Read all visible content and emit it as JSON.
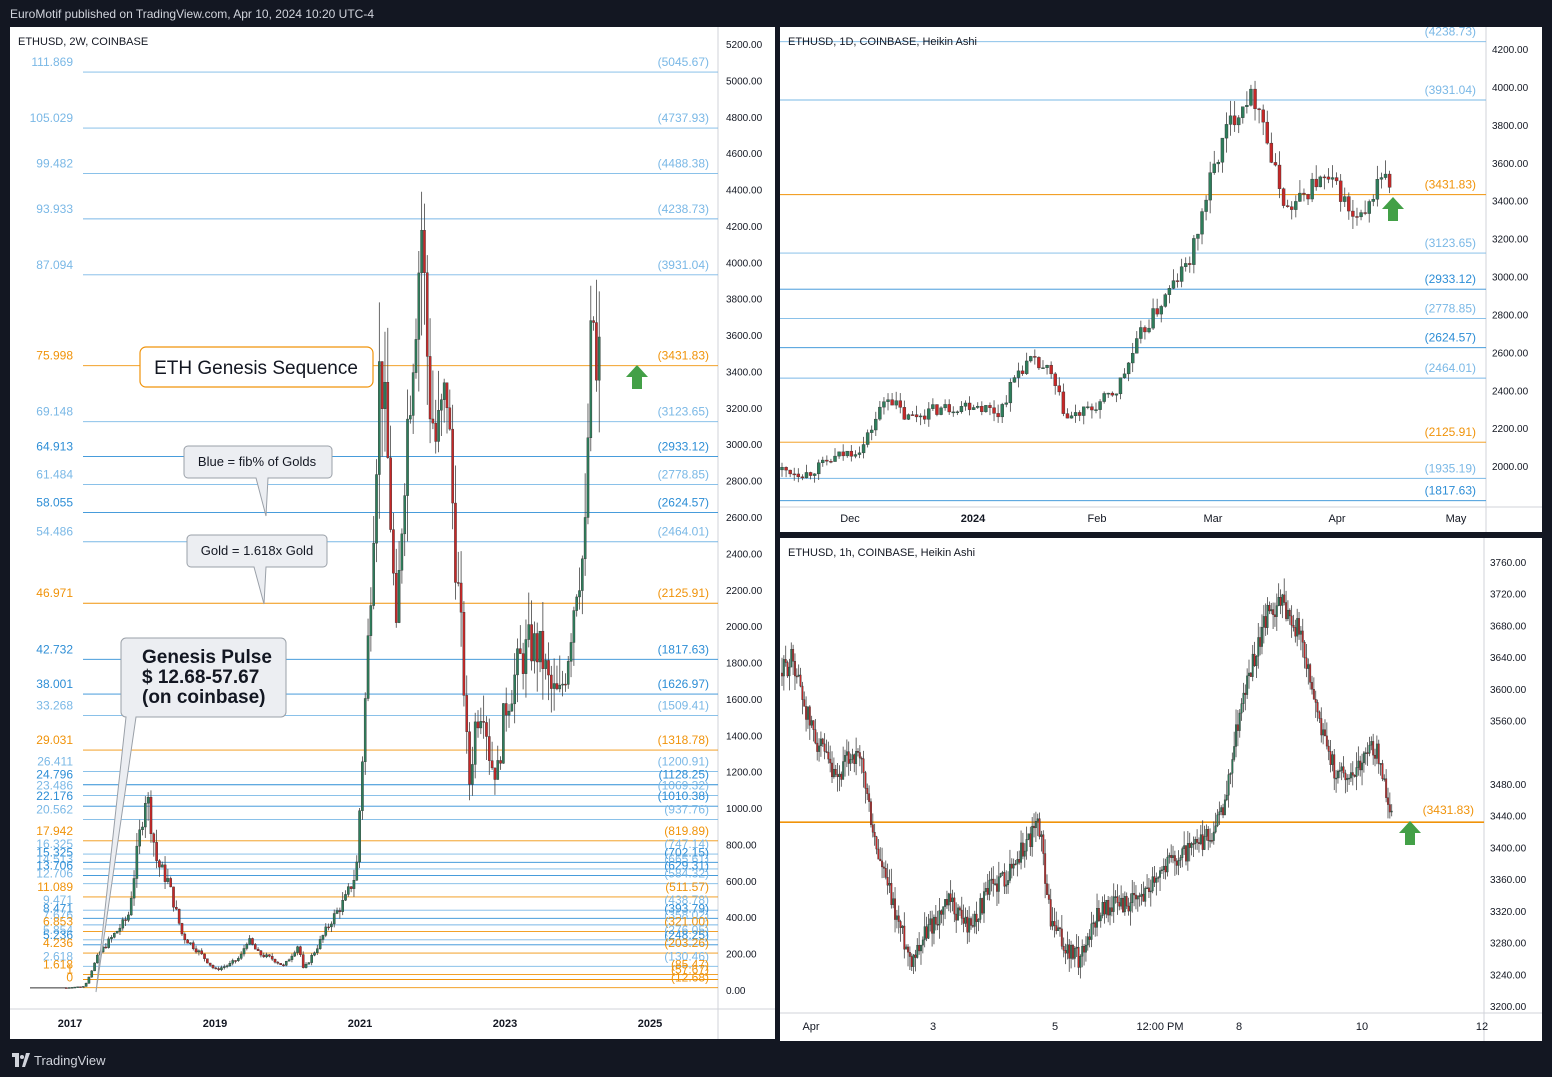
{
  "header": {
    "publisher": "EuroMotif published on TradingView.com, Apr 10, 2024 10:20 UTC-4"
  },
  "footer": {
    "brand": "TradingView"
  },
  "colors": {
    "gold": "#f0930a",
    "blue_dark": "#2d8ed6",
    "blue_light": "#7ab8e6",
    "up": "#2e7d5b",
    "down": "#c62828",
    "arrow": "#43a047",
    "grid": "#e6e8ec"
  },
  "chart_data": [
    {
      "type": "candlestick",
      "id": "main",
      "title": "ETHUSD, 2W, COINBASE",
      "x_ticks": [
        "2017",
        "2019",
        "2021",
        "2023",
        "2025"
      ],
      "y_ticks": [
        "5200.00",
        "5000.00",
        "4800.00",
        "4600.00",
        "4400.00",
        "4200.00",
        "4000.00",
        "3800.00",
        "3600.00",
        "3400.00",
        "3200.00",
        "3000.00",
        "2800.00",
        "2600.00",
        "2400.00",
        "2200.00",
        "2000.00",
        "1800.00",
        "1600.00",
        "1400.00",
        "1200.00",
        "1000.00",
        "800.00",
        "600.00",
        "400.00",
        "200.00",
        "0.00"
      ],
      "ylim": [
        -60,
        5300
      ],
      "fib_levels": [
        {
          "ratio": "111.869",
          "price": "(5045.67)",
          "value": 5045.67,
          "color": "light"
        },
        {
          "ratio": "105.029",
          "price": "(4737.93)",
          "value": 4737.93,
          "color": "light"
        },
        {
          "ratio": "99.482",
          "price": "(4488.38)",
          "value": 4488.38,
          "color": "light"
        },
        {
          "ratio": "93.933",
          "price": "(4238.73)",
          "value": 4238.73,
          "color": "light"
        },
        {
          "ratio": "87.094",
          "price": "(3931.04)",
          "value": 3931.04,
          "color": "light"
        },
        {
          "ratio": "75.998",
          "price": "(3431.83)",
          "value": 3431.83,
          "color": "gold"
        },
        {
          "ratio": "69.148",
          "price": "(3123.65)",
          "value": 3123.65,
          "color": "light"
        },
        {
          "ratio": "64.913",
          "price": "(2933.12)",
          "value": 2933.12,
          "color": "dark"
        },
        {
          "ratio": "61.484",
          "price": "(2778.85)",
          "value": 2778.85,
          "color": "light"
        },
        {
          "ratio": "58.055",
          "price": "(2624.57)",
          "value": 2624.57,
          "color": "dark"
        },
        {
          "ratio": "54.486",
          "price": "(2464.01)",
          "value": 2464.01,
          "color": "light"
        },
        {
          "ratio": "46.971",
          "price": "(2125.91)",
          "value": 2125.91,
          "color": "gold"
        },
        {
          "ratio": "42.732",
          "price": "(1817.63)",
          "value": 1817.63,
          "color": "dark"
        },
        {
          "ratio": "38.001",
          "price": "(1626.97)",
          "value": 1626.97,
          "color": "dark"
        },
        {
          "ratio": "33.268",
          "price": "(1509.41)",
          "value": 1509.41,
          "color": "light"
        },
        {
          "ratio": "29.031",
          "price": "(1318.78)",
          "value": 1318.78,
          "color": "gold"
        },
        {
          "ratio": "26.411",
          "price": "(1200.91)",
          "value": 1200.91,
          "color": "light"
        },
        {
          "ratio": "24.796",
          "price": "(1128.25)",
          "value": 1128.25,
          "color": "dark"
        },
        {
          "ratio": "23.486",
          "price": "(1069.32)",
          "value": 1069.32,
          "color": "light"
        },
        {
          "ratio": "22.176",
          "price": "(1010.38)",
          "value": 1010.38,
          "color": "dark"
        },
        {
          "ratio": "20.562",
          "price": "(937.76)",
          "value": 937.76,
          "color": "light"
        },
        {
          "ratio": "17.942",
          "price": "(819.89)",
          "value": 819.89,
          "color": "gold"
        },
        {
          "ratio": "16.325",
          "price": "(747.14)",
          "value": 747.14,
          "color": "light"
        },
        {
          "ratio": "15.325",
          "price": "(702.15)",
          "value": 702.15,
          "color": "dark"
        },
        {
          "ratio": "14.513",
          "price": "(665.61)",
          "value": 665.61,
          "color": "light"
        },
        {
          "ratio": "13.706",
          "price": "(629.31)",
          "value": 629.31,
          "color": "dark"
        },
        {
          "ratio": "12.706",
          "price": "(584.32)",
          "value": 584.32,
          "color": "light"
        },
        {
          "ratio": "11.089",
          "price": "(511.57)",
          "value": 511.57,
          "color": "gold"
        },
        {
          "ratio": "9.471",
          "price": "(438.78)",
          "value": 438.78,
          "color": "light"
        },
        {
          "ratio": "8.471",
          "price": "(393.79)",
          "value": 393.79,
          "color": "dark"
        },
        {
          "ratio": "7.676",
          "price": "(358.02)",
          "value": 358.02,
          "color": "light"
        },
        {
          "ratio": "6.853",
          "price": "(321.00)",
          "value": 321.0,
          "color": "gold"
        },
        {
          "ratio": "5.854",
          "price": "(276.05)",
          "value": 276.05,
          "color": "light"
        },
        {
          "ratio": "5.236",
          "price": "(248.25)",
          "value": 248.25,
          "color": "dark"
        },
        {
          "ratio": "4.236",
          "price": "(203.26)",
          "value": 203.26,
          "color": "gold"
        },
        {
          "ratio": "2.618",
          "price": "(130.46)",
          "value": 130.46,
          "color": "light"
        },
        {
          "ratio": "1.618",
          "price": "(85.47)",
          "value": 85.47,
          "color": "gold"
        },
        {
          "ratio": "1",
          "price": "(57.67)",
          "value": 57.67,
          "color": "gold"
        },
        {
          "ratio": "0",
          "price": "(12.68)",
          "value": 12.68,
          "color": "gold"
        }
      ],
      "annotations": {
        "title_box": "ETH Genesis Sequence",
        "callout_blue": "Blue = fib% of Golds",
        "callout_gold": "Gold = 1.618x Gold",
        "genesis_1": "Genesis Pulse",
        "genesis_2": "$ 12.68-57.67",
        "genesis_3": "(on coinbase)"
      },
      "price_path": [
        [
          2016.0,
          10
        ],
        [
          2016.9,
          12
        ],
        [
          2017.2,
          20
        ],
        [
          2017.4,
          200
        ],
        [
          2017.6,
          300
        ],
        [
          2017.8,
          400
        ],
        [
          2018.05,
          1100
        ],
        [
          2018.2,
          700
        ],
        [
          2018.35,
          600
        ],
        [
          2018.55,
          300
        ],
        [
          2018.8,
          200
        ],
        [
          2019.0,
          110
        ],
        [
          2019.2,
          140
        ],
        [
          2019.35,
          180
        ],
        [
          2019.45,
          280
        ],
        [
          2019.6,
          200
        ],
        [
          2019.8,
          170
        ],
        [
          2019.95,
          130
        ],
        [
          2020.15,
          250
        ],
        [
          2020.22,
          110
        ],
        [
          2020.4,
          230
        ],
        [
          2020.6,
          380
        ],
        [
          2020.8,
          500
        ],
        [
          2020.95,
          650
        ],
        [
          2021.1,
          1800
        ],
        [
          2021.28,
          3500
        ],
        [
          2021.4,
          2800
        ],
        [
          2021.5,
          1900
        ],
        [
          2021.6,
          2800
        ],
        [
          2021.72,
          3500
        ],
        [
          2021.85,
          4200
        ],
        [
          2021.95,
          3300
        ],
        [
          2022.05,
          3000
        ],
        [
          2022.2,
          3300
        ],
        [
          2022.3,
          2500
        ],
        [
          2022.42,
          1800
        ],
        [
          2022.5,
          1100
        ],
        [
          2022.6,
          1500
        ],
        [
          2022.7,
          1600
        ],
        [
          2022.8,
          1250
        ],
        [
          2022.9,
          1200
        ],
        [
          2023.0,
          1550
        ],
        [
          2023.2,
          1800
        ],
        [
          2023.35,
          1900
        ],
        [
          2023.5,
          1850
        ],
        [
          2023.62,
          1650
        ],
        [
          2023.75,
          1600
        ],
        [
          2023.85,
          1800
        ],
        [
          2024.0,
          2300
        ],
        [
          2024.1,
          2400
        ],
        [
          2024.17,
          3400
        ],
        [
          2024.22,
          3700
        ],
        [
          2024.27,
          3200
        ],
        [
          2024.3,
          3450
        ]
      ]
    },
    {
      "type": "candlestick",
      "id": "daily",
      "title": "ETHUSD, 1D, COINBASE, Heikin Ashi",
      "x_ticks": [
        "Dec",
        "2024",
        "Feb",
        "Mar",
        "Apr",
        "May"
      ],
      "y_ticks": [
        "4200.00",
        "4000.00",
        "3800.00",
        "3600.00",
        "3400.00",
        "3200.00",
        "3000.00",
        "2800.00",
        "2600.00",
        "2400.00",
        "2200.00",
        "2000.00"
      ],
      "ylim": [
        1800,
        4280
      ],
      "fib_levels": [
        {
          "price": "(4238.73)",
          "value": 4238.73,
          "color": "light"
        },
        {
          "price": "(3931.04)",
          "value": 3931.04,
          "color": "light"
        },
        {
          "price": "(3431.83)",
          "value": 3431.83,
          "color": "gold"
        },
        {
          "price": "(3123.65)",
          "value": 3123.65,
          "color": "light"
        },
        {
          "price": "(2933.12)",
          "value": 2933.12,
          "color": "dark"
        },
        {
          "price": "(2778.85)",
          "value": 2778.85,
          "color": "light"
        },
        {
          "price": "(2624.57)",
          "value": 2624.57,
          "color": "dark"
        },
        {
          "price": "(2464.01)",
          "value": 2464.01,
          "color": "light"
        },
        {
          "price": "(2125.91)",
          "value": 2125.91,
          "color": "gold"
        },
        {
          "price": "(1935.19)",
          "value": 1935.19,
          "color": "light"
        },
        {
          "price": "(1817.63)",
          "value": 1817.63,
          "color": "dark"
        }
      ],
      "price_path": [
        [
          0,
          1980
        ],
        [
          8,
          1960
        ],
        [
          18,
          2050
        ],
        [
          26,
          2100
        ],
        [
          34,
          2380
        ],
        [
          40,
          2250
        ],
        [
          50,
          2300
        ],
        [
          62,
          2330
        ],
        [
          70,
          2280
        ],
        [
          76,
          2500
        ],
        [
          80,
          2550
        ],
        [
          86,
          2500
        ],
        [
          92,
          2250
        ],
        [
          100,
          2300
        ],
        [
          108,
          2400
        ],
        [
          116,
          2700
        ],
        [
          124,
          2900
        ],
        [
          132,
          3100
        ],
        [
          138,
          3500
        ],
        [
          144,
          3800
        ],
        [
          150,
          3950
        ],
        [
          154,
          3920
        ],
        [
          158,
          3600
        ],
        [
          163,
          3350
        ],
        [
          167,
          3400
        ],
        [
          172,
          3500
        ],
        [
          176,
          3500
        ],
        [
          180,
          3450
        ],
        [
          184,
          3300
        ],
        [
          188,
          3300
        ],
        [
          193,
          3550
        ],
        [
          196,
          3480
        ]
      ]
    },
    {
      "type": "candlestick",
      "id": "hourly",
      "title": "ETHUSD, 1h, COINBASE, Heikin Ashi",
      "x_ticks": [
        "Apr",
        "3",
        "5",
        "12:00 PM",
        "8",
        "10",
        "12"
      ],
      "y_ticks": [
        "3760.00",
        "3720.00",
        "3680.00",
        "3640.00",
        "3600.00",
        "3560.00",
        "3480.00",
        "3440.00",
        "3400.00",
        "3360.00",
        "3320.00",
        "3280.00",
        "3240.00",
        "3200.00"
      ],
      "ylim": [
        3190,
        3775
      ],
      "fib_levels": [
        {
          "price": "(3431.83)",
          "value": 3431.83,
          "color": "gold"
        }
      ],
      "price_path": [
        [
          0,
          3620
        ],
        [
          8,
          3640
        ],
        [
          20,
          3560
        ],
        [
          40,
          3480
        ],
        [
          52,
          3520
        ],
        [
          60,
          3500
        ],
        [
          70,
          3400
        ],
        [
          84,
          3320
        ],
        [
          96,
          3260
        ],
        [
          110,
          3300
        ],
        [
          125,
          3330
        ],
        [
          140,
          3300
        ],
        [
          156,
          3350
        ],
        [
          170,
          3370
        ],
        [
          180,
          3400
        ],
        [
          192,
          3430
        ],
        [
          200,
          3310
        ],
        [
          212,
          3270
        ],
        [
          222,
          3260
        ],
        [
          236,
          3320
        ],
        [
          250,
          3330
        ],
        [
          265,
          3330
        ],
        [
          280,
          3370
        ],
        [
          295,
          3390
        ],
        [
          310,
          3400
        ],
        [
          322,
          3420
        ],
        [
          330,
          3450
        ],
        [
          340,
          3560
        ],
        [
          352,
          3640
        ],
        [
          362,
          3690
        ],
        [
          370,
          3710
        ],
        [
          378,
          3700
        ],
        [
          386,
          3670
        ],
        [
          396,
          3600
        ],
        [
          404,
          3540
        ],
        [
          412,
          3500
        ],
        [
          422,
          3490
        ],
        [
          432,
          3510
        ],
        [
          442,
          3530
        ],
        [
          448,
          3490
        ],
        [
          455,
          3440
        ]
      ]
    }
  ]
}
